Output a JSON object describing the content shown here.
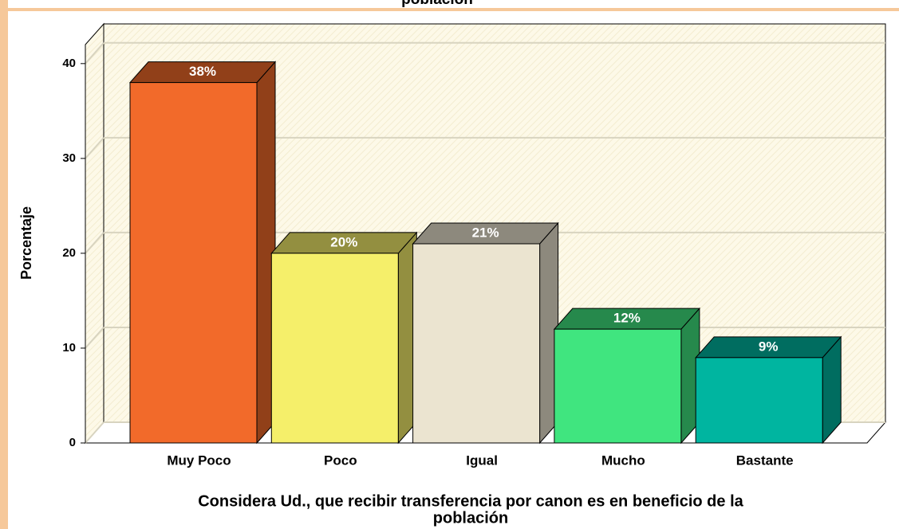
{
  "chart_data": {
    "type": "bar3d",
    "title": "población",
    "x_label": [
      "Considera Ud., que recibir transferencia por canon es en beneficio de la",
      "población"
    ],
    "y_label": "Porcentaje",
    "categories": [
      "Muy Poco",
      "Poco",
      "Igual",
      "Mucho",
      "Bastante"
    ],
    "values": [
      38,
      20,
      21,
      12,
      9
    ],
    "value_labels": [
      "38%",
      "20%",
      "21%",
      "12%",
      "9%"
    ],
    "colors": [
      "#f26a2a",
      "#f5ef6a",
      "#ebe4d0",
      "#40e57f",
      "#00b5a0"
    ],
    "ylim": [
      0,
      42
    ],
    "yticks": [
      0,
      10,
      20,
      30,
      40
    ],
    "grid": true
  }
}
